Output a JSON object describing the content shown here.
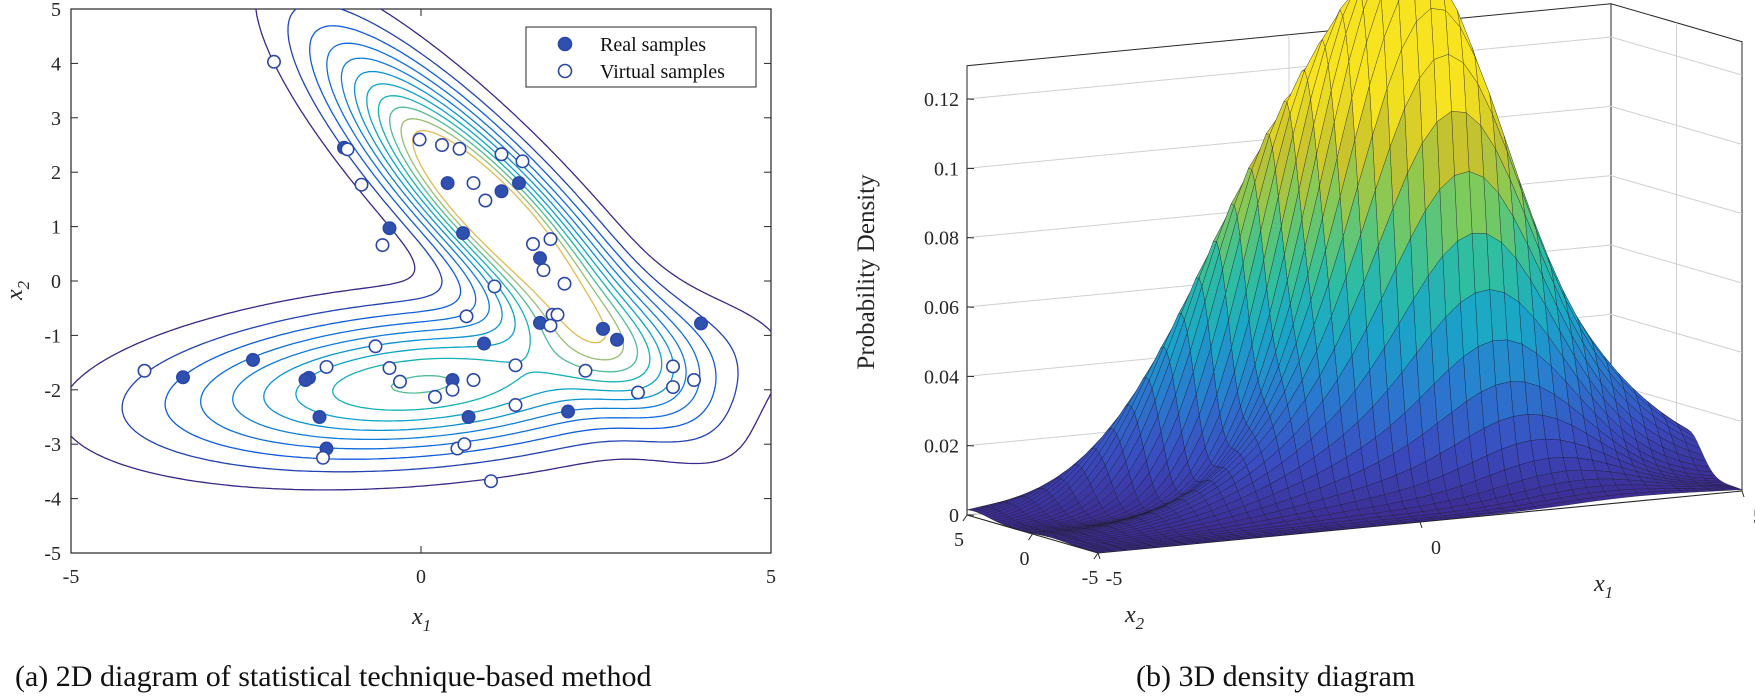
{
  "chart_data": [
    {
      "type": "scatter",
      "caption": "(a) 2D diagram of  statistical technique-based method",
      "xlabel": "x",
      "xlabel_sub": "1",
      "ylabel": "x",
      "ylabel_sub": "2",
      "xlim": [
        -5,
        5
      ],
      "ylim": [
        -5,
        5
      ],
      "xticks": [
        "-5",
        "0",
        "5"
      ],
      "yticks": [
        "-5",
        "-4",
        "-3",
        "-2",
        "-1",
        "0",
        "1",
        "2",
        "3",
        "4",
        "5"
      ],
      "legend": {
        "position": "top-right",
        "entries": [
          "Real samples",
          "Virtual samples"
        ]
      },
      "contours": {
        "components": [
          {
            "mean": [
              1,
              1.3
            ],
            "cov": [
              [
                2.1,
                -2.4
              ],
              [
                -2.4,
                3.6
              ]
            ],
            "weight": 0.5
          },
          {
            "mean": [
              0,
              -1.9
            ],
            "cov": [
              [
                6.0,
                0.6
              ],
              [
                0.6,
                0.85
              ]
            ],
            "weight": 0.5
          }
        ],
        "levels": [
          0.004,
          0.008,
          0.012,
          0.016,
          0.02,
          0.024,
          0.028,
          0.032,
          0.036,
          0.04,
          0.044
        ]
      },
      "series": [
        {
          "name": "Real samples",
          "marker": "filled",
          "points": [
            [
              -1.1,
              2.45
            ],
            [
              -0.45,
              0.97
            ],
            [
              0.38,
              1.8
            ],
            [
              0.6,
              0.88
            ],
            [
              1.15,
              1.65
            ],
            [
              1.4,
              1.8
            ],
            [
              1.7,
              0.42
            ],
            [
              1.7,
              -0.77
            ],
            [
              2.6,
              -0.88
            ],
            [
              2.8,
              -1.08
            ],
            [
              4.0,
              -0.78
            ],
            [
              0.9,
              -1.15
            ],
            [
              0.45,
              -1.82
            ],
            [
              0.68,
              -2.5
            ],
            [
              2.1,
              -2.4
            ],
            [
              -1.6,
              -1.78
            ],
            [
              -1.65,
              -1.82
            ],
            [
              -2.4,
              -1.45
            ],
            [
              -3.4,
              -1.77
            ],
            [
              -1.45,
              -2.5
            ],
            [
              -1.35,
              -3.08
            ]
          ]
        },
        {
          "name": "Virtual samples",
          "marker": "hollow",
          "points": [
            [
              -2.1,
              4.03
            ],
            [
              -1.05,
              2.42
            ],
            [
              -0.85,
              1.77
            ],
            [
              -0.55,
              0.66
            ],
            [
              -0.02,
              2.6
            ],
            [
              0.3,
              2.5
            ],
            [
              0.55,
              2.43
            ],
            [
              0.75,
              1.8
            ],
            [
              0.92,
              1.48
            ],
            [
              1.15,
              2.33
            ],
            [
              1.45,
              2.2
            ],
            [
              1.6,
              0.68
            ],
            [
              1.85,
              0.77
            ],
            [
              1.75,
              0.2
            ],
            [
              2.05,
              -0.05
            ],
            [
              1.05,
              -0.1
            ],
            [
              1.88,
              -0.62
            ],
            [
              1.95,
              -0.62
            ],
            [
              1.85,
              -0.82
            ],
            [
              0.65,
              -0.65
            ],
            [
              1.35,
              -1.55
            ],
            [
              2.35,
              -1.65
            ],
            [
              3.1,
              -2.05
            ],
            [
              3.6,
              -1.57
            ],
            [
              3.6,
              -1.95
            ],
            [
              3.9,
              -1.82
            ],
            [
              1.35,
              -2.28
            ],
            [
              0.75,
              -1.82
            ],
            [
              0.45,
              -2.0
            ],
            [
              0.2,
              -2.13
            ],
            [
              -0.3,
              -1.85
            ],
            [
              -0.45,
              -1.6
            ],
            [
              -0.65,
              -1.2
            ],
            [
              -1.35,
              -1.58
            ],
            [
              -1.4,
              -3.25
            ],
            [
              0.52,
              -3.08
            ],
            [
              0.62,
              -3.0
            ],
            [
              1.0,
              -3.68
            ],
            [
              -3.95,
              -1.65
            ]
          ]
        }
      ]
    },
    {
      "type": "surface",
      "caption": "(b) 3D density diagram",
      "zlabel": "Probability Density",
      "xlabel": "x",
      "xlabel_sub": "1",
      "ylabel": "x",
      "ylabel_sub": "2",
      "zticks": [
        "0",
        "0.02",
        "0.04",
        "0.06",
        "0.08",
        "0.1",
        "0.12"
      ],
      "x1ticks": [
        "-5",
        "0",
        "5"
      ],
      "x2ticks": [
        "5",
        "0",
        "-5"
      ],
      "xlim": [
        -5,
        5
      ],
      "ylim": [
        -5,
        5
      ],
      "zlim": [
        0,
        0.12
      ],
      "peaks": [
        {
          "x1": -0.3,
          "x2": 0.4,
          "z": 0.12
        },
        {
          "x1": 1.3,
          "x2": -1.1,
          "z": 0.071
        }
      ],
      "colormap": [
        "#3d2a8f",
        "#3a4cc0",
        "#2a7ad0",
        "#1aa6c8",
        "#2fbea0",
        "#7cca5e",
        "#c6c22e",
        "#f7e31f"
      ]
    }
  ]
}
